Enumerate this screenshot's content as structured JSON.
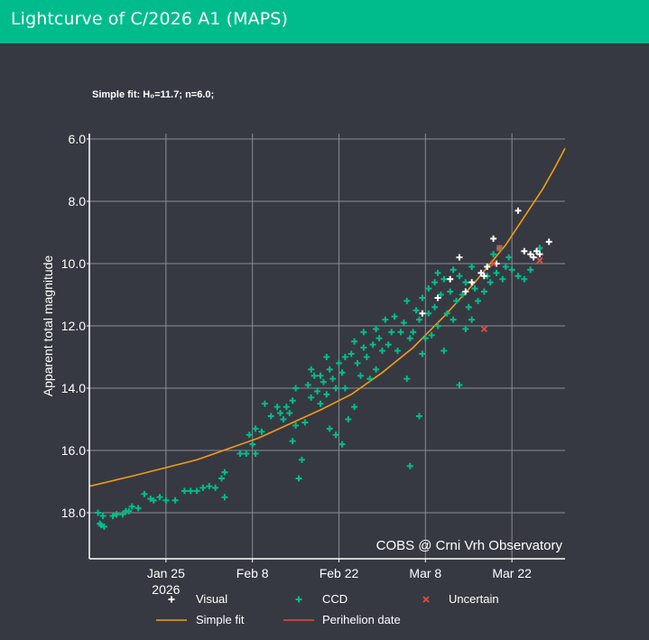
{
  "header": {
    "title": "Lightcurve of C/2026 A1 (MAPS)"
  },
  "chart_data": {
    "type": "scatter",
    "title": "Lightcurve of C/2026 A1 (MAPS)",
    "subtitle": "Simple fit: H₀=11.7; n=6.0;",
    "xlabel": "",
    "ylabel": "Apparent total magnitude",
    "ylim": [
      6.0,
      19.3
    ],
    "y_inverted": true,
    "y_ticks": [
      "6.0",
      "8.0",
      "10.0",
      "12.0",
      "14.0",
      "16.0",
      "18.0"
    ],
    "x_unit": "days since 2026-01-01",
    "xlim": [
      12.6,
      89.6
    ],
    "x_ticks": [
      {
        "day": 25,
        "label": "Jan 25",
        "sub": "2026"
      },
      {
        "day": 39,
        "label": "Feb 8"
      },
      {
        "day": 53,
        "label": "Feb 22"
      },
      {
        "day": 67,
        "label": "Mar 8"
      },
      {
        "day": 81,
        "label": "Mar 22"
      }
    ],
    "grid": true,
    "watermark": "COBS @ Crni Vrh Observatory",
    "legend": [
      {
        "name": "Visual",
        "symbol": "+",
        "color": "#ffffff"
      },
      {
        "name": "CCD",
        "symbol": "+",
        "color": "#00bc8c"
      },
      {
        "name": "Uncertain",
        "symbol": "x",
        "color": "#e74c3c"
      },
      {
        "name": "Simple fit",
        "symbol": "line",
        "color": "#f39c12"
      },
      {
        "name": "Perihelion date",
        "symbol": "line",
        "color": "#e74c3c"
      }
    ],
    "fit": {
      "H0": 11.7,
      "n": 6.0,
      "color": "#f39c12",
      "x": [
        12.6,
        20,
        30,
        40,
        50,
        55,
        60,
        65,
        70,
        75,
        80,
        83,
        86,
        88,
        89.6
      ],
      "y": [
        17.15,
        16.8,
        16.3,
        15.6,
        14.7,
        14.2,
        13.5,
        12.7,
        11.7,
        10.6,
        9.4,
        8.5,
        7.6,
        6.9,
        6.3
      ]
    },
    "series": [
      {
        "name": "CCD",
        "color": "#00bc8c",
        "points": [
          [
            14.0,
            18.0
          ],
          [
            14.5,
            18.4
          ],
          [
            14.3,
            18.35
          ],
          [
            15.0,
            18.45
          ],
          [
            14.8,
            18.1
          ],
          [
            16.4,
            18.1
          ],
          [
            17.0,
            18.05
          ],
          [
            18.0,
            18.05
          ],
          [
            18.5,
            17.95
          ],
          [
            19.0,
            17.95
          ],
          [
            19.5,
            17.8
          ],
          [
            20.5,
            17.85
          ],
          [
            21.5,
            17.4
          ],
          [
            22.5,
            17.55
          ],
          [
            23.0,
            17.6
          ],
          [
            24.0,
            17.5
          ],
          [
            25.0,
            17.6
          ],
          [
            26.5,
            17.6
          ],
          [
            28.0,
            17.3
          ],
          [
            29.0,
            17.3
          ],
          [
            30.0,
            17.3
          ],
          [
            31.0,
            17.2
          ],
          [
            32.0,
            17.15
          ],
          [
            33.0,
            17.2
          ],
          [
            34.0,
            16.9
          ],
          [
            34.5,
            16.7
          ],
          [
            34.5,
            17.5
          ],
          [
            37.0,
            16.1
          ],
          [
            38.0,
            16.1
          ],
          [
            38.5,
            15.5
          ],
          [
            39.5,
            15.3
          ],
          [
            39.0,
            15.8
          ],
          [
            39.5,
            16.1
          ],
          [
            40.5,
            15.4
          ],
          [
            41.0,
            14.5
          ],
          [
            42.0,
            14.9
          ],
          [
            43.0,
            14.6
          ],
          [
            43.5,
            14.8
          ],
          [
            44.0,
            15.0
          ],
          [
            44.5,
            14.6
          ],
          [
            45.0,
            14.8
          ],
          [
            45.5,
            15.7
          ],
          [
            45.5,
            14.4
          ],
          [
            46.0,
            15.2
          ],
          [
            46.0,
            14.0
          ],
          [
            46.5,
            16.9
          ],
          [
            47.0,
            16.3
          ],
          [
            47.5,
            15.1
          ],
          [
            48.0,
            13.9
          ],
          [
            48.5,
            13.4
          ],
          [
            48.5,
            14.3
          ],
          [
            49.0,
            13.6
          ],
          [
            49.5,
            14.1
          ],
          [
            50.0,
            13.6
          ],
          [
            50.0,
            14.5
          ],
          [
            50.5,
            13.8
          ],
          [
            51.0,
            14.2
          ],
          [
            51.0,
            13.0
          ],
          [
            51.5,
            13.4
          ],
          [
            51.5,
            15.3
          ],
          [
            52.0,
            13.7
          ],
          [
            52.5,
            14.0
          ],
          [
            52.5,
            15.5
          ],
          [
            53.0,
            13.2
          ],
          [
            53.5,
            13.5
          ],
          [
            53.5,
            15.8
          ],
          [
            54.0,
            14.0
          ],
          [
            54.0,
            13.0
          ],
          [
            54.5,
            15.0
          ],
          [
            55.0,
            12.9
          ],
          [
            55.5,
            12.5
          ],
          [
            55.5,
            14.6
          ],
          [
            56.0,
            13.2
          ],
          [
            56.5,
            13.6
          ],
          [
            57.0,
            12.7
          ],
          [
            57.0,
            12.2
          ],
          [
            57.5,
            13.0
          ],
          [
            58.0,
            13.7
          ],
          [
            58.5,
            12.6
          ],
          [
            59.0,
            13.4
          ],
          [
            59.0,
            12.1
          ],
          [
            59.5,
            12.4
          ],
          [
            60.0,
            12.8
          ],
          [
            60.5,
            11.8
          ],
          [
            61.0,
            12.6
          ],
          [
            61.5,
            12.2
          ],
          [
            62.0,
            11.7
          ],
          [
            62.5,
            12.8
          ],
          [
            63.0,
            12.2
          ],
          [
            63.5,
            11.9
          ],
          [
            64.0,
            11.2
          ],
          [
            64.5,
            12.4
          ],
          [
            64.0,
            13.7
          ],
          [
            65.0,
            12.2
          ],
          [
            65.5,
            11.5
          ],
          [
            66.0,
            11.8
          ],
          [
            66.5,
            12.9
          ],
          [
            66.5,
            11.1
          ],
          [
            67.0,
            12.4
          ],
          [
            67.5,
            10.8
          ],
          [
            67.5,
            11.6
          ],
          [
            68.0,
            12.3
          ],
          [
            68.5,
            10.6
          ],
          [
            68.5,
            11.4
          ],
          [
            69.0,
            10.3
          ],
          [
            69.0,
            12.0
          ],
          [
            69.5,
            11.0
          ],
          [
            70.0,
            10.5
          ],
          [
            70.0,
            12.8
          ],
          [
            70.5,
            11.6
          ],
          [
            71.0,
            10.9
          ],
          [
            71.5,
            10.2
          ],
          [
            71.5,
            11.8
          ],
          [
            72.0,
            11.2
          ],
          [
            72.5,
            10.4
          ],
          [
            72.5,
            13.9
          ],
          [
            73.0,
            11.0
          ],
          [
            73.5,
            12.1
          ],
          [
            73.5,
            10.6
          ],
          [
            74.0,
            11.4
          ],
          [
            74.5,
            10.1
          ],
          [
            74.5,
            11.8
          ],
          [
            75.0,
            10.8
          ],
          [
            75.5,
            11.2
          ],
          [
            76.0,
            10.3
          ],
          [
            76.5,
            10.9
          ],
          [
            77.0,
            10.4
          ],
          [
            77.5,
            10.6
          ],
          [
            78.0,
            9.7
          ],
          [
            78.5,
            10.3
          ],
          [
            79.0,
            9.5
          ],
          [
            79.5,
            10.5
          ],
          [
            80.0,
            10.1
          ],
          [
            80.5,
            9.8
          ],
          [
            81.0,
            10.2
          ],
          [
            82.0,
            10.4
          ],
          [
            83.0,
            10.5
          ],
          [
            84.0,
            10.2
          ],
          [
            85.0,
            9.6
          ],
          [
            85.5,
            9.5
          ],
          [
            64.5,
            16.5
          ],
          [
            66.0,
            14.9
          ]
        ]
      },
      {
        "name": "Visual",
        "color": "#ffffff",
        "points": [
          [
            66.5,
            11.6
          ],
          [
            69.0,
            11.1
          ],
          [
            71.0,
            10.5
          ],
          [
            72.5,
            9.8
          ],
          [
            73.5,
            10.9
          ],
          [
            74.5,
            10.6
          ],
          [
            76.0,
            10.3
          ],
          [
            76.5,
            10.4
          ],
          [
            77.0,
            10.1
          ],
          [
            78.0,
            9.2
          ],
          [
            78.5,
            10.0
          ],
          [
            82.0,
            8.3
          ],
          [
            83.0,
            9.6
          ],
          [
            84.0,
            9.7
          ],
          [
            85.0,
            9.6
          ],
          [
            85.5,
            9.7
          ],
          [
            87.0,
            9.3
          ],
          [
            84.5,
            9.8
          ]
        ]
      },
      {
        "name": "Uncertain",
        "color": "#e74c3c",
        "points": [
          [
            79.0,
            9.5
          ],
          [
            78.0,
            10.0
          ],
          [
            85.5,
            9.9
          ],
          [
            76.5,
            12.1
          ]
        ]
      }
    ]
  }
}
